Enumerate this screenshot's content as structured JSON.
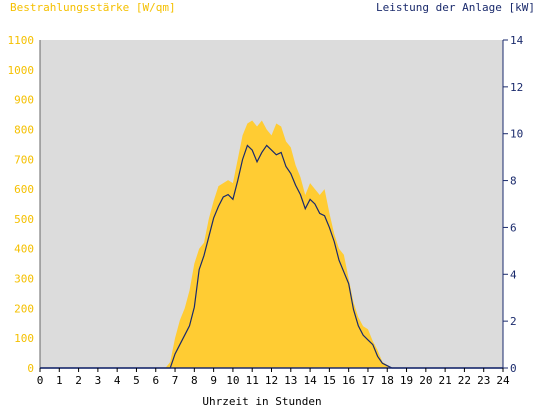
{
  "header": {
    "left_title": "Bestrahlungsstärke [W/qm]",
    "right_title": "Leistung der Anlage [kW]"
  },
  "colors": {
    "plot_background": "#dcdcdc",
    "irradiance_fill": "#ffcc33",
    "power_line": "#1a2a6c",
    "left_axis_text": "#f5c000",
    "right_axis_text": "#1a2a6c"
  },
  "chart_data": {
    "type": "area",
    "xlabel": "Uhrzeit in Stunden",
    "xlim": [
      0,
      24
    ],
    "x_ticks": [
      "0",
      "1",
      "2",
      "3",
      "4",
      "5",
      "6",
      "7",
      "8",
      "9",
      "10",
      "11",
      "12",
      "13",
      "14",
      "15",
      "16",
      "17",
      "18",
      "19",
      "20",
      "21",
      "22",
      "23",
      "24"
    ],
    "y_left": {
      "label": "Bestrahlungsstärke [W/qm]",
      "lim": [
        0,
        1100
      ],
      "ticks": [
        "0",
        "100",
        "200",
        "300",
        "400",
        "500",
        "600",
        "700",
        "800",
        "900",
        "1000",
        "1100"
      ]
    },
    "y_right": {
      "label": "Leistung der Anlage [kW]",
      "lim": [
        0,
        14
      ],
      "ticks": [
        "0",
        "2",
        "4",
        "6",
        "8",
        "10",
        "12",
        "14"
      ]
    },
    "grid": false,
    "series": [
      {
        "axis": "left",
        "style": "filled-area",
        "x": [
          0,
          6.5,
          6.75,
          7,
          7.25,
          7.5,
          7.75,
          8,
          8.25,
          8.5,
          8.75,
          9,
          9.25,
          9.5,
          9.75,
          10,
          10.25,
          10.5,
          10.75,
          11,
          11.25,
          11.5,
          11.75,
          12,
          12.25,
          12.5,
          12.75,
          13,
          13.25,
          13.5,
          13.75,
          14,
          14.25,
          14.5,
          14.75,
          15,
          15.25,
          15.5,
          15.75,
          16,
          16.25,
          16.5,
          16.75,
          17,
          17.25,
          17.5,
          17.75,
          18,
          18.25,
          24
        ],
        "values": [
          0,
          0,
          20,
          100,
          160,
          200,
          260,
          350,
          400,
          420,
          500,
          560,
          610,
          620,
          630,
          620,
          700,
          780,
          820,
          830,
          810,
          830,
          800,
          780,
          820,
          810,
          760,
          740,
          680,
          640,
          580,
          620,
          600,
          580,
          600,
          520,
          450,
          400,
          380,
          300,
          220,
          170,
          140,
          130,
          90,
          60,
          20,
          10,
          0,
          0
        ]
      },
      {
        "axis": "right",
        "style": "line",
        "x": [
          0,
          6.75,
          7,
          7.25,
          7.5,
          7.75,
          8,
          8.25,
          8.5,
          8.75,
          9,
          9.25,
          9.5,
          9.75,
          10,
          10.25,
          10.5,
          10.75,
          11,
          11.25,
          11.5,
          11.75,
          12,
          12.25,
          12.5,
          12.75,
          13,
          13.25,
          13.5,
          13.75,
          14,
          14.25,
          14.5,
          14.75,
          15,
          15.25,
          15.5,
          15.75,
          16,
          16.25,
          16.5,
          16.75,
          17,
          17.25,
          17.5,
          17.75,
          18,
          18.25,
          24
        ],
        "values": [
          0,
          0,
          0.6,
          1.0,
          1.4,
          1.8,
          2.6,
          4.2,
          4.8,
          5.6,
          6.4,
          6.9,
          7.3,
          7.4,
          7.2,
          8.0,
          8.9,
          9.5,
          9.3,
          8.8,
          9.2,
          9.5,
          9.3,
          9.1,
          9.2,
          8.6,
          8.3,
          7.8,
          7.4,
          6.8,
          7.2,
          7.0,
          6.6,
          6.5,
          6.0,
          5.4,
          4.6,
          4.1,
          3.6,
          2.5,
          1.8,
          1.4,
          1.2,
          1.0,
          0.5,
          0.2,
          0.1,
          0,
          0
        ]
      }
    ]
  }
}
